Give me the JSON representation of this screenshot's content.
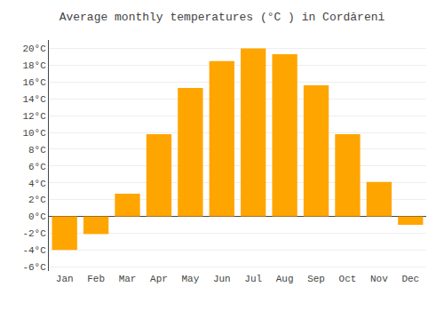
{
  "chart_data": {
    "type": "bar",
    "title": "Average monthly temperatures (°C ) in Cordăreni",
    "categories": [
      "Jan",
      "Feb",
      "Mar",
      "Apr",
      "May",
      "Jun",
      "Jul",
      "Aug",
      "Sep",
      "Oct",
      "Nov",
      "Dec"
    ],
    "values": [
      -4.0,
      -2.1,
      2.7,
      9.8,
      15.3,
      18.5,
      20.0,
      19.3,
      15.6,
      9.8,
      4.1,
      -1.0
    ],
    "color": "#FFA500",
    "ylim": [
      -6.5,
      21
    ],
    "yticks": [
      {
        "value": -6,
        "label": "-6°C"
      },
      {
        "value": -4,
        "label": "-4°C"
      },
      {
        "value": -2,
        "label": "-2°C"
      },
      {
        "value": 0,
        "label": "0°C"
      },
      {
        "value": 2,
        "label": "2°C"
      },
      {
        "value": 4,
        "label": "4°C"
      },
      {
        "value": 6,
        "label": "6°C"
      },
      {
        "value": 8,
        "label": "8°C"
      },
      {
        "value": 10,
        "label": "10°C"
      },
      {
        "value": 12,
        "label": "12°C"
      },
      {
        "value": 14,
        "label": "14°C"
      },
      {
        "value": 16,
        "label": "16°C"
      },
      {
        "value": 18,
        "label": "18°C"
      },
      {
        "value": 20,
        "label": "20°C"
      }
    ],
    "grid": true
  }
}
